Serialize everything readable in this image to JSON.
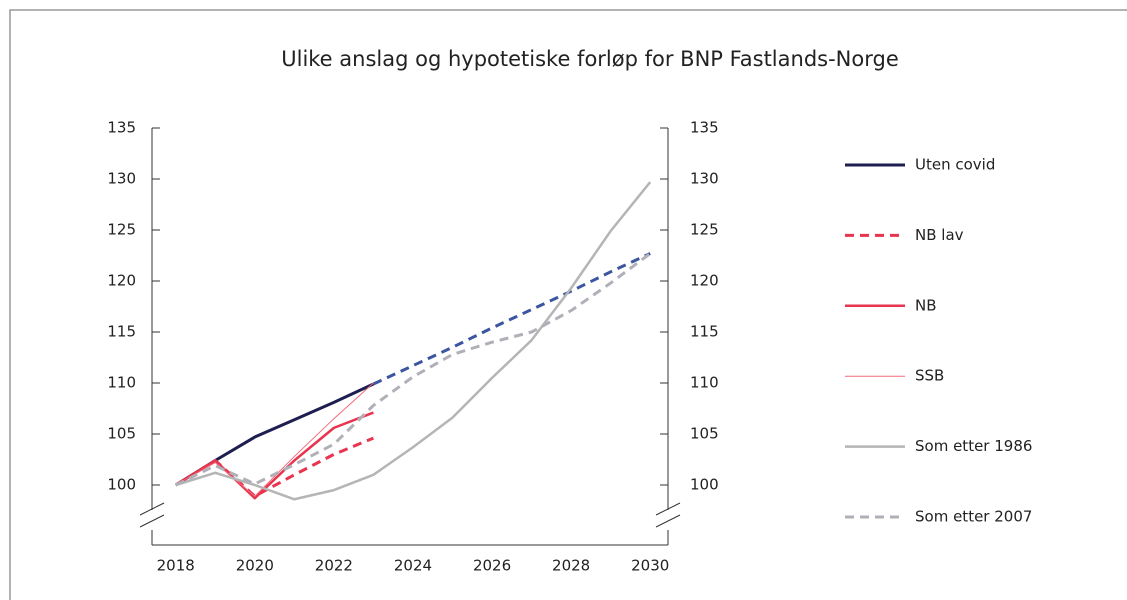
{
  "chart_data": {
    "type": "line",
    "title": "Ulike anslag og hypotetiske forløp for BNP Fastlands-Norge",
    "x": [
      2018,
      2019,
      2020,
      2021,
      2022,
      2023,
      2024,
      2025,
      2026,
      2027,
      2028,
      2029,
      2030
    ],
    "xlim": [
      2017.4,
      2030.45
    ],
    "xticks": [
      2018,
      2020,
      2022,
      2024,
      2026,
      2028,
      2030
    ],
    "ylim": [
      97,
      135
    ],
    "yticks": [
      100,
      105,
      110,
      115,
      120,
      125,
      130,
      135
    ],
    "y2lim": [
      97,
      135
    ],
    "y2ticks": [
      100,
      105,
      110,
      115,
      120,
      125,
      130,
      135
    ],
    "legend": "right",
    "series": [
      {
        "name": "Uten covid",
        "color": "#1e1e50",
        "width": 3,
        "dash": false,
        "projection_color": "#3b55a0",
        "projection_start_index": 5,
        "values": [
          100,
          102.4,
          104.7,
          106.4,
          108.1,
          109.9,
          111.7,
          113.5,
          115.4,
          117.2,
          119.0,
          120.9,
          122.7
        ]
      },
      {
        "name": "NB lav",
        "color": "#e8344e",
        "width": 3,
        "dash": true,
        "values": [
          100,
          102.4,
          98.9,
          101.0,
          103.0,
          104.6,
          null,
          null,
          null,
          null,
          null,
          null,
          null
        ]
      },
      {
        "name": "NB",
        "color": "#e8344e",
        "width": 2.5,
        "dash": false,
        "values": [
          100,
          102.4,
          98.7,
          102.4,
          105.6,
          107.1,
          null,
          null,
          null,
          null,
          null,
          null,
          null
        ]
      },
      {
        "name": "SSB",
        "color": "#ef6b7b",
        "width": 1,
        "dash": false,
        "values": [
          100,
          102.2,
          98.9,
          102.8,
          106.5,
          110.0,
          null,
          null,
          null,
          null,
          null,
          null,
          null
        ]
      },
      {
        "name": "Som etter 1986",
        "color": "#b5b5b5",
        "width": 2.5,
        "dash": false,
        "values": [
          100,
          101.2,
          100.0,
          98.6,
          99.5,
          101.0,
          103.7,
          106.6,
          110.5,
          114.2,
          119.3,
          124.9,
          129.7
        ]
      },
      {
        "name": "Som etter 2007",
        "color": "#b0b0b8",
        "width": 3,
        "dash": true,
        "values": [
          100,
          101.9,
          100.1,
          102.0,
          104.0,
          107.8,
          110.6,
          112.8,
          114.0,
          115.0,
          117.1,
          119.8,
          122.7
        ]
      }
    ]
  }
}
